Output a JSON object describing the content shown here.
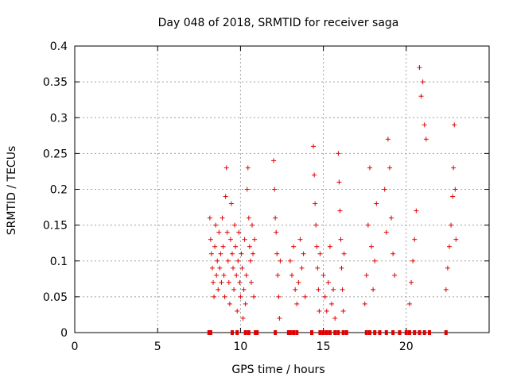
{
  "chart_data": {
    "type": "scatter",
    "title": "Day 048 of 2018, SRMTID for receiver saga",
    "xlabel": "GPS time / hours",
    "ylabel": "SRMTID / TECUs",
    "xlim": [
      0,
      25
    ],
    "ylim": [
      0,
      0.4
    ],
    "xticks": [
      "0",
      "5",
      "10",
      "15",
      "20"
    ],
    "yticks": [
      "0",
      "0.05",
      "0.1",
      "0.15",
      "0.2",
      "0.25",
      "0.3",
      "0.35",
      "0.4"
    ],
    "grid": true,
    "marker_color": "#e00000",
    "series": [
      {
        "name": "SRMTID",
        "points": [
          [
            8.15,
            0.16
          ],
          [
            8.2,
            0.13
          ],
          [
            8.25,
            0.11
          ],
          [
            8.3,
            0.09
          ],
          [
            8.35,
            0.07
          ],
          [
            8.4,
            0.05
          ],
          [
            8.45,
            0.12
          ],
          [
            8.5,
            0.15
          ],
          [
            8.55,
            0.08
          ],
          [
            8.6,
            0.1
          ],
          [
            8.65,
            0.06
          ],
          [
            8.7,
            0.14
          ],
          [
            8.75,
            0.09
          ],
          [
            8.8,
            0.11
          ],
          [
            8.85,
            0.07
          ],
          [
            8.9,
            0.16
          ],
          [
            8.95,
            0.12
          ],
          [
            9.0,
            0.08
          ],
          [
            9.05,
            0.05
          ],
          [
            9.1,
            0.19
          ],
          [
            9.15,
            0.23
          ],
          [
            9.2,
            0.14
          ],
          [
            9.25,
            0.1
          ],
          [
            9.3,
            0.07
          ],
          [
            9.35,
            0.04
          ],
          [
            9.4,
            0.13
          ],
          [
            9.45,
            0.18
          ],
          [
            9.5,
            0.11
          ],
          [
            9.55,
            0.09
          ],
          [
            9.6,
            0.06
          ],
          [
            9.65,
            0.15
          ],
          [
            9.7,
            0.12
          ],
          [
            9.75,
            0.08
          ],
          [
            9.8,
            0.03
          ],
          [
            9.85,
            0.1
          ],
          [
            9.9,
            0.14
          ],
          [
            9.95,
            0.07
          ],
          [
            10.0,
            0.05
          ],
          [
            10.05,
            0.11
          ],
          [
            10.1,
            0.09
          ],
          [
            10.15,
            0.02
          ],
          [
            10.2,
            0.06
          ],
          [
            10.25,
            0.13
          ],
          [
            10.3,
            0.04
          ],
          [
            10.35,
            0.08
          ],
          [
            10.4,
            0.2
          ],
          [
            10.45,
            0.23
          ],
          [
            10.5,
            0.16
          ],
          [
            10.55,
            0.12
          ],
          [
            10.6,
            0.1
          ],
          [
            10.65,
            0.07
          ],
          [
            10.7,
            0.15
          ],
          [
            10.75,
            0.11
          ],
          [
            10.8,
            0.05
          ],
          [
            10.85,
            0.13
          ],
          [
            12.0,
            0.24
          ],
          [
            12.05,
            0.2
          ],
          [
            12.1,
            0.16
          ],
          [
            12.15,
            0.14
          ],
          [
            12.2,
            0.11
          ],
          [
            12.25,
            0.08
          ],
          [
            12.3,
            0.05
          ],
          [
            12.35,
            0.02
          ],
          [
            12.4,
            0.1
          ],
          [
            13.0,
            0.1
          ],
          [
            13.1,
            0.08
          ],
          [
            13.2,
            0.12
          ],
          [
            13.3,
            0.06
          ],
          [
            13.4,
            0.04
          ],
          [
            13.5,
            0.07
          ],
          [
            13.6,
            0.13
          ],
          [
            13.7,
            0.09
          ],
          [
            13.8,
            0.11
          ],
          [
            13.9,
            0.05
          ],
          [
            14.4,
            0.26
          ],
          [
            14.45,
            0.22
          ],
          [
            14.5,
            0.18
          ],
          [
            14.55,
            0.15
          ],
          [
            14.6,
            0.12
          ],
          [
            14.65,
            0.09
          ],
          [
            14.7,
            0.06
          ],
          [
            14.75,
            0.03
          ],
          [
            14.8,
            0.11
          ],
          [
            15.0,
            0.08
          ],
          [
            15.1,
            0.05
          ],
          [
            15.2,
            0.03
          ],
          [
            15.3,
            0.07
          ],
          [
            15.4,
            0.12
          ],
          [
            15.5,
            0.04
          ],
          [
            15.6,
            0.06
          ],
          [
            15.7,
            0.02
          ],
          [
            15.9,
            0.25
          ],
          [
            15.95,
            0.21
          ],
          [
            16.0,
            0.17
          ],
          [
            16.05,
            0.13
          ],
          [
            16.1,
            0.09
          ],
          [
            16.15,
            0.06
          ],
          [
            16.2,
            0.03
          ],
          [
            16.25,
            0.11
          ],
          [
            17.5,
            0.04
          ],
          [
            17.6,
            0.08
          ],
          [
            17.7,
            0.15
          ],
          [
            17.8,
            0.23
          ],
          [
            17.9,
            0.12
          ],
          [
            18.0,
            0.06
          ],
          [
            18.1,
            0.1
          ],
          [
            18.2,
            0.18
          ],
          [
            18.7,
            0.2
          ],
          [
            18.8,
            0.14
          ],
          [
            18.9,
            0.27
          ],
          [
            19.0,
            0.23
          ],
          [
            19.1,
            0.16
          ],
          [
            19.2,
            0.11
          ],
          [
            19.3,
            0.08
          ],
          [
            20.2,
            0.04
          ],
          [
            20.3,
            0.07
          ],
          [
            20.4,
            0.1
          ],
          [
            20.5,
            0.13
          ],
          [
            20.6,
            0.17
          ],
          [
            20.8,
            0.37
          ],
          [
            20.9,
            0.33
          ],
          [
            21.0,
            0.35
          ],
          [
            21.1,
            0.29
          ],
          [
            21.2,
            0.27
          ],
          [
            22.4,
            0.06
          ],
          [
            22.5,
            0.09
          ],
          [
            22.6,
            0.12
          ],
          [
            22.7,
            0.15
          ],
          [
            22.8,
            0.19
          ],
          [
            22.85,
            0.23
          ],
          [
            22.9,
            0.29
          ],
          [
            22.95,
            0.2
          ],
          [
            23.0,
            0.13
          ]
        ]
      }
    ],
    "zero_points_x": [
      8.1,
      8.2,
      9.5,
      9.8,
      10.3,
      10.5,
      10.9,
      11.0,
      12.1,
      12.9,
      13.0,
      13.2,
      13.4,
      14.3,
      14.8,
      15.0,
      15.2,
      15.4,
      15.7,
      15.9,
      16.2,
      16.4,
      17.6,
      17.8,
      18.1,
      18.4,
      18.8,
      19.2,
      19.6,
      20.0,
      20.2,
      20.5,
      20.8,
      21.1,
      21.4,
      22.4
    ]
  }
}
